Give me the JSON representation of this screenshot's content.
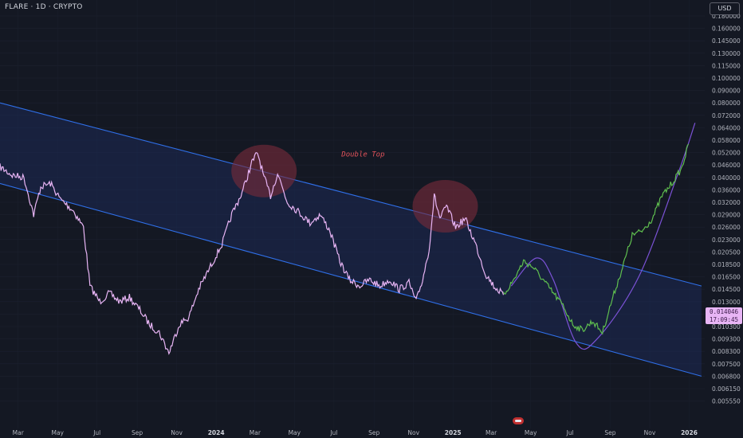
{
  "header": {
    "symbol_line": "FLARE · 1D · CRYPTO"
  },
  "axis": {
    "currency_label": "USD"
  },
  "price_tag": {
    "price": "0.014046",
    "countdown": "17:09:45"
  },
  "colors": {
    "background": "#141823",
    "history_line": "#e8b5f5",
    "forecast_line": "#5fbf4f",
    "channel_line": "#2f6fe8",
    "channel_fill": "#1b2a55",
    "circle_fill": "#7a2c3a",
    "curve": "#7b52d6",
    "annotation": "#e0525a"
  },
  "chart_data": {
    "type": "line",
    "title": "",
    "y_scale": "log",
    "y_ticks": [
      "0.180000",
      "0.160000",
      "0.145000",
      "0.130000",
      "0.115000",
      "0.100000",
      "0.090000",
      "0.080000",
      "0.072000",
      "0.064000",
      "0.058000",
      "0.052000",
      "0.046000",
      "0.040000",
      "0.036000",
      "0.032000",
      "0.029000",
      "0.026000",
      "0.023000",
      "0.020500",
      "0.018500",
      "0.016500",
      "0.014500",
      "0.013000",
      "0.011500",
      "0.010300",
      "0.009300",
      "0.008300",
      "0.007500",
      "0.006800",
      "0.006150",
      "0.005550"
    ],
    "x_ticks": [
      {
        "label": "Mar",
        "year": false
      },
      {
        "label": "May",
        "year": false
      },
      {
        "label": "Jul",
        "year": false
      },
      {
        "label": "Sep",
        "year": false
      },
      {
        "label": "Nov",
        "year": false
      },
      {
        "label": "2024",
        "year": true
      },
      {
        "label": "Mar",
        "year": false
      },
      {
        "label": "May",
        "year": false
      },
      {
        "label": "Jul",
        "year": false
      },
      {
        "label": "Sep",
        "year": false
      },
      {
        "label": "Nov",
        "year": false
      },
      {
        "label": "2025",
        "year": true
      },
      {
        "label": "Mar",
        "year": false
      },
      {
        "label": "May",
        "year": false
      },
      {
        "label": "Jul",
        "year": false
      },
      {
        "label": "Sep",
        "year": false
      },
      {
        "label": "Nov",
        "year": false
      },
      {
        "label": "2026",
        "year": true
      }
    ],
    "series": [
      {
        "role": "history",
        "points": [
          [
            "2023-02-01",
            0.045
          ],
          [
            "2023-02-20",
            0.041
          ],
          [
            "2023-03-10",
            0.04
          ],
          [
            "2023-03-25",
            0.029
          ],
          [
            "2023-04-05",
            0.037
          ],
          [
            "2023-04-20",
            0.038
          ],
          [
            "2023-05-05",
            0.033
          ],
          [
            "2023-05-25",
            0.03
          ],
          [
            "2023-06-10",
            0.026
          ],
          [
            "2023-06-20",
            0.015
          ],
          [
            "2023-07-05",
            0.013
          ],
          [
            "2023-07-20",
            0.014
          ],
          [
            "2023-08-05",
            0.013
          ],
          [
            "2023-08-20",
            0.0135
          ],
          [
            "2023-09-05",
            0.012
          ],
          [
            "2023-09-20",
            0.0105
          ],
          [
            "2023-10-05",
            0.0098
          ],
          [
            "2023-10-20",
            0.0082
          ],
          [
            "2023-11-05",
            0.0105
          ],
          [
            "2023-11-20",
            0.0112
          ],
          [
            "2023-12-05",
            0.0145
          ],
          [
            "2023-12-25",
            0.0185
          ],
          [
            "2024-01-10",
            0.022
          ],
          [
            "2024-01-25",
            0.029
          ],
          [
            "2024-02-10",
            0.035
          ],
          [
            "2024-02-25",
            0.047
          ],
          [
            "2024-03-05",
            0.052
          ],
          [
            "2024-03-15",
            0.04
          ],
          [
            "2024-03-25",
            0.034
          ],
          [
            "2024-04-05",
            0.042
          ],
          [
            "2024-04-20",
            0.032
          ],
          [
            "2024-05-05",
            0.03
          ],
          [
            "2024-05-25",
            0.027
          ],
          [
            "2024-06-10",
            0.029
          ],
          [
            "2024-06-25",
            0.025
          ],
          [
            "2024-07-10",
            0.019
          ],
          [
            "2024-07-25",
            0.016
          ],
          [
            "2024-08-10",
            0.015
          ],
          [
            "2024-08-25",
            0.016
          ],
          [
            "2024-09-10",
            0.015
          ],
          [
            "2024-09-25",
            0.016
          ],
          [
            "2024-10-10",
            0.0145
          ],
          [
            "2024-10-25",
            0.0155
          ],
          [
            "2024-11-05",
            0.013
          ],
          [
            "2024-11-15",
            0.016
          ],
          [
            "2024-11-25",
            0.021
          ],
          [
            "2024-12-03",
            0.034
          ],
          [
            "2024-12-12",
            0.028
          ],
          [
            "2024-12-22",
            0.031
          ],
          [
            "2025-01-05",
            0.026
          ],
          [
            "2025-01-20",
            0.028
          ],
          [
            "2025-02-05",
            0.022
          ],
          [
            "2025-02-20",
            0.017
          ],
          [
            "2025-03-05",
            0.015
          ],
          [
            "2025-03-20",
            0.0138
          ]
        ]
      },
      {
        "role": "forecast",
        "points": [
          [
            "2025-03-20",
            0.0138
          ],
          [
            "2025-04-05",
            0.016
          ],
          [
            "2025-04-20",
            0.019
          ],
          [
            "2025-05-05",
            0.018
          ],
          [
            "2025-05-20",
            0.016
          ],
          [
            "2025-06-05",
            0.014
          ],
          [
            "2025-06-20",
            0.0125
          ],
          [
            "2025-07-05",
            0.0105
          ],
          [
            "2025-07-20",
            0.01
          ],
          [
            "2025-08-05",
            0.0108
          ],
          [
            "2025-08-20",
            0.0098
          ],
          [
            "2025-09-05",
            0.0135
          ],
          [
            "2025-09-20",
            0.018
          ],
          [
            "2025-10-05",
            0.024
          ],
          [
            "2025-10-20",
            0.025
          ],
          [
            "2025-11-05",
            0.028
          ],
          [
            "2025-11-20",
            0.034
          ],
          [
            "2025-12-05",
            0.038
          ],
          [
            "2025-12-20",
            0.044
          ],
          [
            "2025-12-31",
            0.056
          ]
        ]
      }
    ],
    "channel": {
      "upper": [
        [
          "2023-02-01",
          0.08
        ],
        [
          "2026-01-20",
          0.015
        ]
      ],
      "lower": [
        [
          "2023-02-01",
          0.038
        ],
        [
          "2026-01-20",
          0.0068
        ]
      ]
    },
    "curve": {
      "points": [
        [
          "2025-04-01",
          0.015
        ],
        [
          "2025-05-10",
          0.0195
        ],
        [
          "2025-06-05",
          0.016
        ],
        [
          "2025-07-10",
          0.009
        ],
        [
          "2025-08-10",
          0.0092
        ],
        [
          "2025-10-15",
          0.0165
        ],
        [
          "2025-12-15",
          0.042
        ],
        [
          "2026-01-10",
          0.067
        ]
      ]
    },
    "circles": [
      {
        "center": [
          "2024-03-15",
          0.043
        ]
      },
      {
        "center": [
          "2024-12-20",
          0.031
        ]
      }
    ],
    "annotations": [
      {
        "text": "Double Top",
        "at": [
          "2024-08-15",
          0.05
        ]
      }
    ]
  }
}
